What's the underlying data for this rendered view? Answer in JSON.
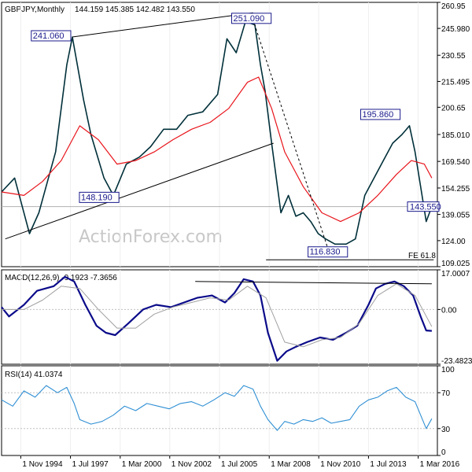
{
  "chart_data": {
    "type": "line",
    "title": "GBPJPY,Monthly",
    "ohlc_header": "144.159 145.385 142.482 143.550",
    "watermark": "ActionForex.com",
    "x_range": [
      1993.8,
      2017.2
    ],
    "x_ticks": [
      {
        "label": "1 Nov 1994",
        "t": 1994.83
      },
      {
        "label": "1 Jul 1997",
        "t": 1997.5
      },
      {
        "label": "1 Mar 2000",
        "t": 2000.17
      },
      {
        "label": "1 Nov 2002",
        "t": 2002.83
      },
      {
        "label": "1 Jul 2005",
        "t": 2005.5
      },
      {
        "label": "1 Mar 2008",
        "t": 2008.17
      },
      {
        "label": "1 Nov 2010",
        "t": 2010.83
      },
      {
        "label": "1 Jul 2013",
        "t": 2013.5
      },
      {
        "label": "1 Mar 2016",
        "t": 2016.17
      }
    ],
    "price_panel": {
      "ylim": [
        109.025,
        260.95
      ],
      "ytick_labels": [
        "260.95",
        "245.980",
        "230.55",
        "215.495",
        "200.65",
        "185.010",
        "169.540",
        "154.255",
        "139.055",
        "124.00",
        "109.025"
      ],
      "last_price_label": "143.550",
      "last_price": 143.55,
      "series": [
        {
          "role": "price",
          "color": "#00303a",
          "x": [
            1993.8,
            1994.5,
            1995.3,
            1995.8,
            1996.7,
            1997.3,
            1997.6,
            1998.2,
            1998.6,
            1999.3,
            1999.8,
            2000.5,
            2001.2,
            2001.8,
            2002.5,
            2003.2,
            2003.8,
            2004.6,
            2005.4,
            2005.9,
            2006.4,
            2006.9,
            2007.4,
            2007.7,
            2007.95,
            2008.3,
            2008.8,
            2009.2,
            2009.6,
            2010.0,
            2010.4,
            2010.8,
            2011.2,
            2011.7,
            2012.3,
            2012.8,
            2013.3,
            2013.8,
            2014.3,
            2014.8,
            2015.3,
            2015.7,
            2016.0,
            2016.3,
            2016.6,
            2016.9
          ],
          "y": [
            152,
            160,
            128,
            140,
            175,
            225,
            241,
            205,
            185,
            160,
            150,
            168,
            172,
            178,
            188,
            188,
            196,
            198,
            208,
            240,
            232,
            250,
            248,
            225,
            210,
            180,
            140,
            150,
            138,
            140,
            135,
            128,
            125,
            122,
            122,
            125,
            150,
            160,
            170,
            180,
            185,
            190,
            175,
            155,
            135,
            143.55
          ]
        },
        {
          "role": "moving-average",
          "color": "#e8141b",
          "x": [
            1993.8,
            1995.0,
            1996.0,
            1997.0,
            1998.0,
            1999.0,
            2000.0,
            2001.0,
            2002.0,
            2003.0,
            2004.0,
            2005.0,
            2006.0,
            2007.0,
            2007.6,
            2008.3,
            2009.0,
            2010.0,
            2011.0,
            2012.0,
            2013.0,
            2014.0,
            2015.0,
            2015.8,
            2016.5,
            2016.9
          ],
          "y": [
            152,
            150,
            158,
            170,
            190,
            182,
            168,
            170,
            175,
            182,
            188,
            192,
            200,
            215,
            218,
            200,
            175,
            155,
            140,
            135,
            140,
            150,
            162,
            170,
            168,
            160
          ]
        },
        {
          "role": "trendline",
          "color": "#000000",
          "x": [
            1997.6,
            2007.3
          ],
          "y": [
            241.06,
            255
          ]
        },
        {
          "role": "trendline",
          "color": "#000000",
          "x": [
            1994.0,
            2008.4
          ],
          "y": [
            125,
            180
          ]
        },
        {
          "role": "trendline",
          "color": "#000000",
          "x": [
            2008.0,
            2017.0
          ],
          "y": [
            113,
            113
          ]
        },
        {
          "role": "trendline-dashed",
          "color": "#000000",
          "x": [
            2007.3,
            2011.4
          ],
          "y": [
            251.09,
            116.83
          ]
        }
      ],
      "annotations": [
        {
          "text": "241.060",
          "x": 1997.6,
          "y": 241.06
        },
        {
          "text": "251.090",
          "x": 2007.3,
          "y": 251.09
        },
        {
          "text": "148.190",
          "x": 2000.1,
          "y": 148.19
        },
        {
          "text": "195.860",
          "x": 2015.2,
          "y": 195.86
        },
        {
          "text": "116.830",
          "x": 2011.4,
          "y": 116.83
        },
        {
          "text": "FE 61.8",
          "x": 2016.4,
          "y": 113
        }
      ]
    },
    "macd_panel": {
      "title": "MACD(12,26,9) -9.1923 -7.3656",
      "ylim": [
        -23.4823,
        17.0007
      ],
      "ytick_labels": [
        "17.0007",
        "0.00",
        "-23.4823"
      ],
      "zero_line": 0,
      "series": [
        {
          "role": "macd",
          "color": "#0b0b8a",
          "x": [
            1993.8,
            1994.2,
            1995.0,
            1995.7,
            1996.6,
            1997.2,
            1997.7,
            1998.3,
            1998.9,
            1999.4,
            1999.9,
            2000.6,
            2001.4,
            2002.1,
            2002.9,
            2003.6,
            2004.3,
            2005.1,
            2005.8,
            2006.3,
            2006.8,
            2007.3,
            2007.7,
            2008.1,
            2008.6,
            2009.1,
            2009.6,
            2010.2,
            2010.9,
            2011.6,
            2012.3,
            2012.9,
            2013.5,
            2013.9,
            2014.4,
            2014.9,
            2015.4,
            2015.9,
            2016.3,
            2016.6,
            2016.9
          ],
          "y": [
            1,
            -3,
            2,
            8,
            10,
            14,
            12,
            2,
            -7,
            -10,
            -11,
            -6,
            0,
            2,
            1,
            3,
            5,
            6,
            3,
            7,
            13,
            12,
            6,
            -10,
            -22,
            -18,
            -16,
            -14,
            -12,
            -13,
            -10,
            -7,
            2,
            9,
            11,
            12,
            10,
            6,
            -3,
            -9,
            -9.1923
          ]
        },
        {
          "role": "signal",
          "color": "#a0a0a0",
          "x": [
            1993.8,
            1995.0,
            1996.0,
            1997.0,
            1998.0,
            1999.0,
            2000.0,
            2001.0,
            2002.0,
            2003.0,
            2004.0,
            2005.0,
            2006.0,
            2007.0,
            2008.0,
            2009.0,
            2010.0,
            2011.0,
            2012.0,
            2013.0,
            2014.0,
            2015.0,
            2016.0,
            2016.9
          ],
          "y": [
            0,
            0,
            4,
            10,
            9,
            0,
            -8,
            -8,
            -2,
            1,
            3,
            5,
            4,
            10,
            5,
            -14,
            -16,
            -13,
            -12,
            -6,
            6,
            11,
            6,
            -7.3656
          ]
        },
        {
          "role": "trendline",
          "color": "#000000",
          "x": [
            2004.2,
            2016.9
          ],
          "y": [
            12,
            11
          ]
        }
      ]
    },
    "rsi_panel": {
      "title": "RSI(14) 41.0374",
      "ylim": [
        0,
        100
      ],
      "ytick_labels": [
        "100",
        "70",
        "30",
        "0"
      ],
      "levels": [
        70,
        30
      ],
      "series": [
        {
          "role": "rsi",
          "color": "#2f8fd4",
          "x": [
            1993.8,
            1994.4,
            1995.0,
            1995.6,
            1996.2,
            1996.8,
            1997.3,
            1997.7,
            1998.0,
            1998.6,
            1999.2,
            1999.8,
            2000.4,
            2001.0,
            2001.6,
            2002.2,
            2002.8,
            2003.4,
            2004.0,
            2004.6,
            2005.2,
            2005.8,
            2006.3,
            2006.8,
            2007.3,
            2007.7,
            2008.1,
            2008.6,
            2009.0,
            2009.5,
            2010.0,
            2010.5,
            2011.0,
            2011.5,
            2012.0,
            2012.5,
            2013.0,
            2013.5,
            2014.0,
            2014.5,
            2015.0,
            2015.5,
            2016.0,
            2016.3,
            2016.6,
            2016.9
          ],
          "y": [
            62,
            55,
            72,
            65,
            78,
            70,
            76,
            58,
            40,
            35,
            38,
            45,
            55,
            50,
            58,
            55,
            52,
            58,
            60,
            55,
            62,
            70,
            66,
            78,
            74,
            55,
            40,
            28,
            38,
            35,
            40,
            38,
            42,
            36,
            38,
            40,
            55,
            62,
            65,
            72,
            76,
            65,
            60,
            45,
            30,
            41.0374
          ]
        }
      ]
    }
  }
}
